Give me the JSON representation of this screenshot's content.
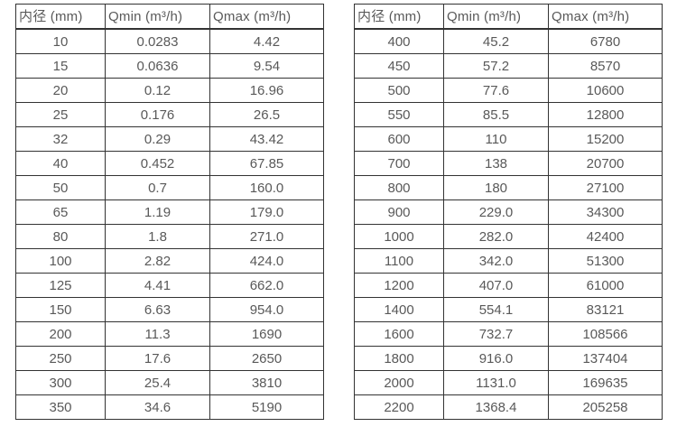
{
  "columns": [
    "内径 (mm)",
    "Qmin (m³/h)",
    "Qmax (m³/h)"
  ],
  "tables": [
    {
      "name": "flow-table-small-diameters",
      "rows": [
        [
          "10",
          "0.0283",
          "4.42"
        ],
        [
          "15",
          "0.0636",
          "9.54"
        ],
        [
          "20",
          "0.12",
          "16.96"
        ],
        [
          "25",
          "0.176",
          "26.5"
        ],
        [
          "32",
          "0.29",
          "43.42"
        ],
        [
          "40",
          "0.452",
          "67.85"
        ],
        [
          "50",
          "0.7",
          "160.0"
        ],
        [
          "65",
          "1.19",
          "179.0"
        ],
        [
          "80",
          "1.8",
          "271.0"
        ],
        [
          "100",
          "2.82",
          "424.0"
        ],
        [
          "125",
          "4.41",
          "662.0"
        ],
        [
          "150",
          "6.63",
          "954.0"
        ],
        [
          "200",
          "11.3",
          "1690"
        ],
        [
          "250",
          "17.6",
          "2650"
        ],
        [
          "300",
          "25.4",
          "3810"
        ],
        [
          "350",
          "34.6",
          "5190"
        ]
      ]
    },
    {
      "name": "flow-table-large-diameters",
      "rows": [
        [
          "400",
          "45.2",
          "6780"
        ],
        [
          "450",
          "57.2",
          "8570"
        ],
        [
          "500",
          "77.6",
          "10600"
        ],
        [
          "550",
          "85.5",
          "12800"
        ],
        [
          "600",
          "110",
          "15200"
        ],
        [
          "700",
          "138",
          "20700"
        ],
        [
          "800",
          "180",
          "27100"
        ],
        [
          "900",
          "229.0",
          "34300"
        ],
        [
          "1000",
          "282.0",
          "42400"
        ],
        [
          "1100",
          "342.0",
          "51300"
        ],
        [
          "1200",
          "407.0",
          "61000"
        ],
        [
          "1400",
          "554.1",
          "83121"
        ],
        [
          "1600",
          "732.7",
          "108566"
        ],
        [
          "1800",
          "916.0",
          "137404"
        ],
        [
          "2000",
          "1131.0",
          "169635"
        ],
        [
          "2200",
          "1368.4",
          "205258"
        ]
      ]
    }
  ],
  "colors": {
    "border": "#333333",
    "text": "#595959",
    "background": "#ffffff"
  }
}
